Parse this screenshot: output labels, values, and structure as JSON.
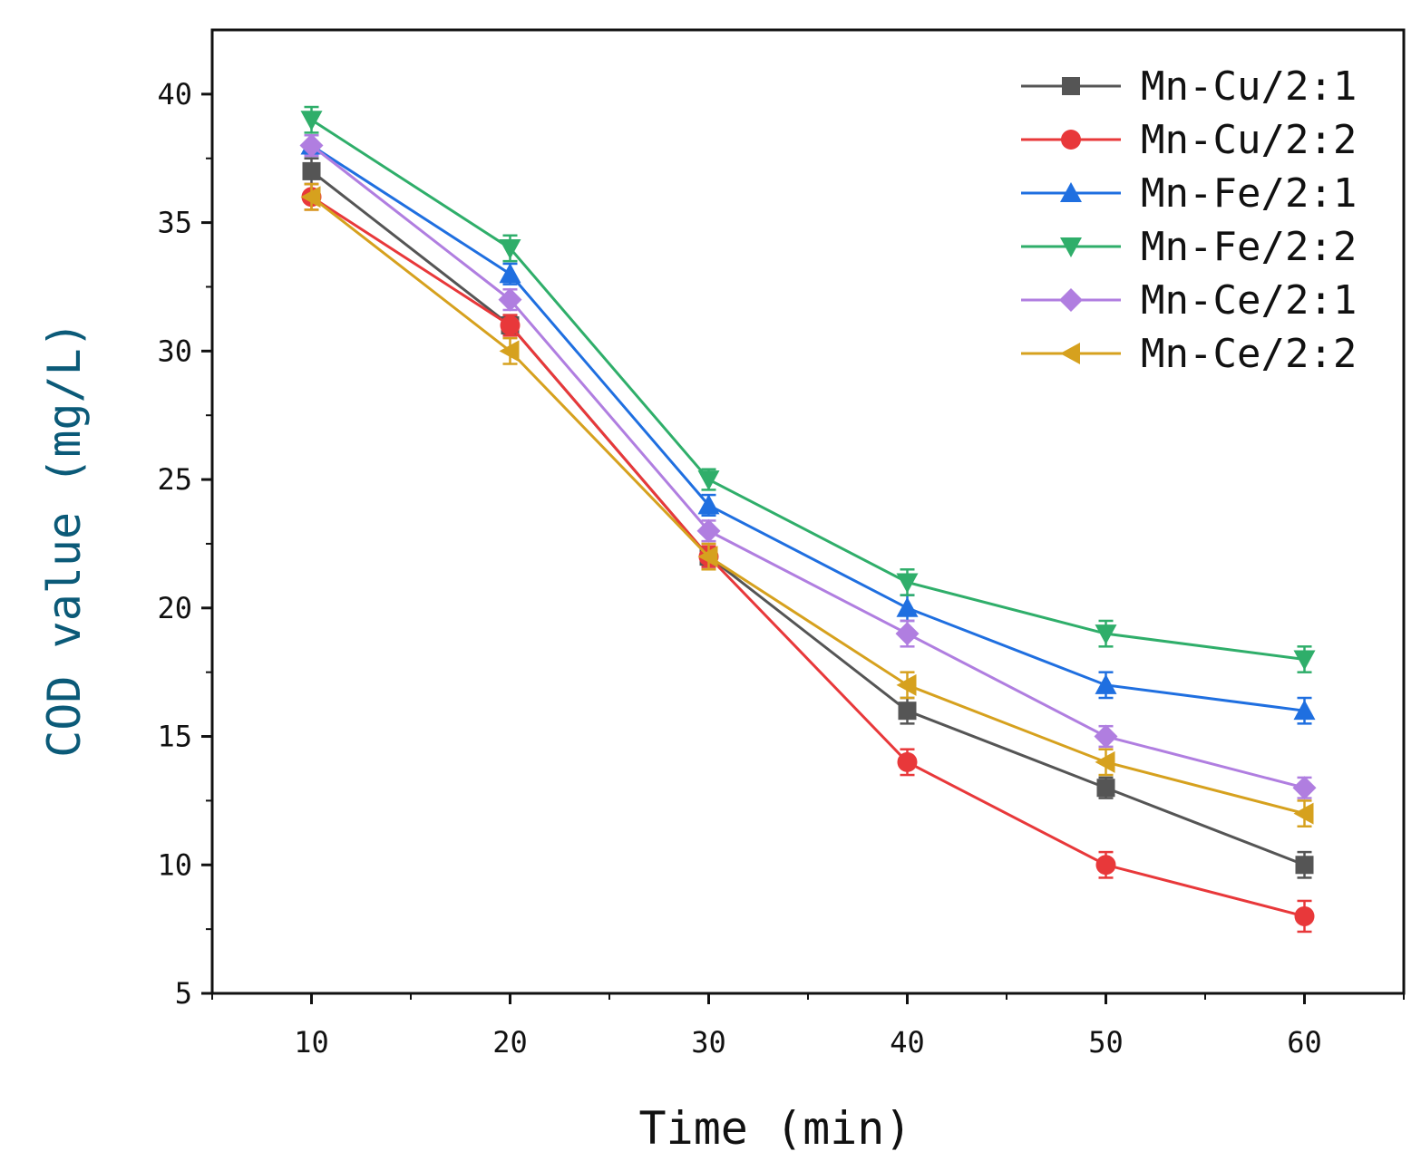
{
  "chart_data": {
    "type": "line",
    "title": "",
    "xlabel": "Time (min)",
    "ylabel": "COD value (mg/L)",
    "xlim": [
      5,
      65
    ],
    "ylim": [
      5,
      42.5
    ],
    "x": [
      10,
      20,
      30,
      40,
      50,
      60
    ],
    "xticks": [
      10,
      20,
      30,
      40,
      50,
      60
    ],
    "yticks": [
      5,
      10,
      15,
      20,
      25,
      30,
      35,
      40
    ],
    "legend_position": "top-right",
    "error_bars": true,
    "series": [
      {
        "name": "Mn-Cu/2:1",
        "color": "#555555",
        "marker": "square",
        "values": [
          37,
          31,
          22,
          16,
          13,
          10
        ],
        "errors": [
          0.5,
          0.4,
          0.4,
          0.5,
          0.4,
          0.5
        ]
      },
      {
        "name": "Mn-Cu/2:2",
        "color": "#e8383a",
        "marker": "circle",
        "values": [
          36,
          31,
          22,
          14,
          10,
          8
        ],
        "errors": [
          0.5,
          0.4,
          0.4,
          0.5,
          0.5,
          0.6
        ]
      },
      {
        "name": "Mn-Fe/2:1",
        "color": "#1f6fe0",
        "marker": "triangle-up",
        "values": [
          38,
          33,
          24,
          20,
          17,
          16
        ],
        "errors": [
          0.4,
          0.4,
          0.4,
          0.5,
          0.5,
          0.5
        ]
      },
      {
        "name": "Mn-Fe/2:2",
        "color": "#2fae6a",
        "marker": "triangle-down",
        "values": [
          39,
          34,
          25,
          21,
          19,
          18
        ],
        "errors": [
          0.5,
          0.5,
          0.4,
          0.5,
          0.5,
          0.5
        ]
      },
      {
        "name": "Mn-Ce/2:1",
        "color": "#b07ee0",
        "marker": "diamond",
        "values": [
          38,
          32,
          23,
          19,
          15,
          13
        ],
        "errors": [
          0.4,
          0.4,
          0.4,
          0.5,
          0.4,
          0.4
        ]
      },
      {
        "name": "Mn-Ce/2:2",
        "color": "#d6a11e",
        "marker": "triangle-left",
        "values": [
          36,
          30,
          22,
          17,
          14,
          12
        ],
        "errors": [
          0.5,
          0.5,
          0.5,
          0.5,
          0.5,
          0.5
        ]
      }
    ],
    "xlabel_color": "#111111",
    "ylabel_color": "#0b5a78"
  }
}
